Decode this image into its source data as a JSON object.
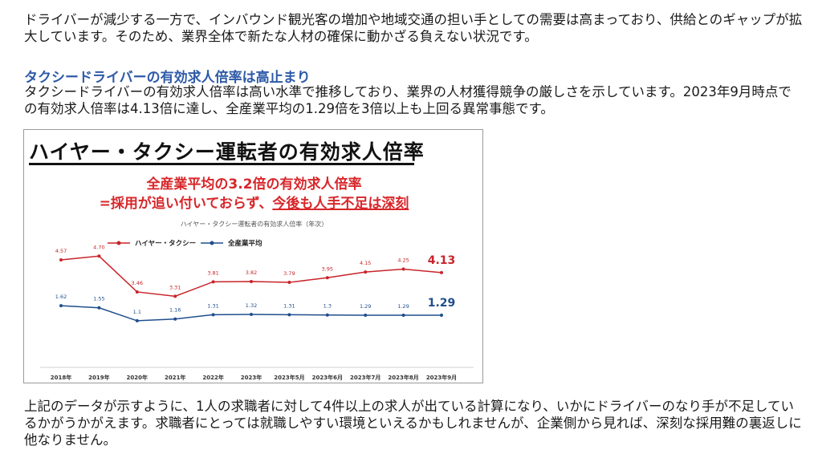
{
  "intro": {
    "paragraph": "ドライバーが減少する一方で、インバウンド観光客の増加や地域交通の担い手としての需要は高まっており、供給とのギャップが拡大しています。そのため、業界全体で新たな人材の確保に動かざる負えない状況です。"
  },
  "section": {
    "heading": "タクシードライバーの有効求人倍率は高止まり",
    "paragraph": "タクシードライバーの有効求人倍率は高い水準で推移しており、業界の人材獲得競争の厳しさを示しています。2023年9月時点での有効求人倍率は4.13倍に達し、全産業平均の1.29倍を3倍以上も上回る異常事態です。"
  },
  "figure": {
    "title": "ハイヤー・タクシー運転者の有効求人倍率",
    "subtitle_line1": "全産業平均の3.2倍の有効求人倍率",
    "subtitle_line2_a": "=採用が追い付いておらず、",
    "subtitle_line2_b": "今後も人手不足は深刻",
    "chart_title": "ハイヤー・タクシー運転者の有効求人倍率（年次）"
  },
  "chart_data": {
    "type": "line",
    "title": "ハイヤー・タクシー運転者の有効求人倍率（年次）",
    "categories": [
      "2018年",
      "2019年",
      "2020年",
      "2021年",
      "2022年",
      "2023年",
      "2023年5月",
      "2023年6月",
      "2023年7月",
      "2023年8月",
      "2023年9月"
    ],
    "series": [
      {
        "name": "ハイヤー・タクシー",
        "color": "#c8242a",
        "values": [
          4.57,
          4.7,
          3.46,
          3.31,
          3.81,
          3.82,
          3.79,
          3.95,
          4.15,
          4.25,
          4.13
        ],
        "labels": [
          "4.57",
          "4.70",
          "3.46",
          "3.31",
          "3.81",
          "3.82",
          "3.79",
          "3.95",
          "4.15",
          "4.25",
          "4.13"
        ]
      },
      {
        "name": "全産業平均",
        "color": "#1f4e8c",
        "values": [
          1.62,
          1.55,
          1.1,
          1.16,
          1.31,
          1.32,
          1.31,
          1.3,
          1.29,
          1.29,
          1.29
        ],
        "labels": [
          "1.62",
          "1.55",
          "1.1",
          "1.16",
          "1.31",
          "1.32",
          "1.31",
          "1.3",
          "1.29",
          "1.29",
          "1.29"
        ]
      }
    ],
    "legend_position": "top-left",
    "grid": false
  },
  "outro": {
    "paragraph": "上記のデータが示すように、1人の求職者に対して4件以上の求人が出ている計算になり、いかにドライバーのなり手が不足しているかがうかがえます。求職者にとっては就職しやすい環境といえるかもしれませんが、企業側から見れば、深刻な採用難の裏返しに他なりません。"
  }
}
